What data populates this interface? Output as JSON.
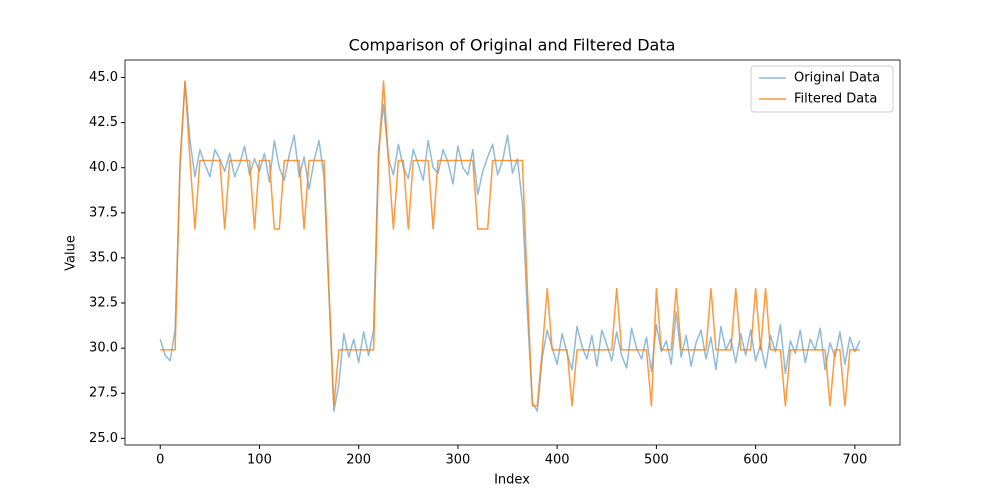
{
  "chart_data": {
    "type": "line",
    "title": "Comparison of Original and Filtered Data",
    "xlabel": "Index",
    "ylabel": "Value",
    "x": [
      0,
      5,
      10,
      15,
      20,
      25,
      30,
      35,
      40,
      45,
      50,
      55,
      60,
      65,
      70,
      75,
      80,
      85,
      90,
      95,
      100,
      105,
      110,
      115,
      120,
      125,
      130,
      135,
      140,
      145,
      150,
      155,
      160,
      165,
      170,
      175,
      180,
      185,
      190,
      195,
      200,
      205,
      210,
      215,
      220,
      225,
      230,
      235,
      240,
      245,
      250,
      255,
      260,
      265,
      270,
      275,
      280,
      285,
      290,
      295,
      300,
      305,
      310,
      315,
      320,
      325,
      330,
      335,
      340,
      345,
      350,
      355,
      360,
      365,
      370,
      375,
      380,
      385,
      390,
      395,
      400,
      405,
      410,
      415,
      420,
      425,
      430,
      435,
      440,
      445,
      450,
      455,
      460,
      465,
      470,
      475,
      480,
      485,
      490,
      495,
      500,
      505,
      510,
      515,
      520,
      525,
      530,
      535,
      540,
      545,
      550,
      555,
      560,
      565,
      570,
      575,
      580,
      585,
      590,
      595,
      600,
      605,
      610,
      615,
      620,
      625,
      630,
      635,
      640,
      645,
      650,
      655,
      660,
      665,
      670,
      675,
      680,
      685,
      690,
      695,
      700,
      705
    ],
    "series": [
      {
        "name": "Original Data",
        "color": "#1f77b4",
        "alpha": 0.5,
        "values": [
          30.5,
          29.6,
          29.3,
          31,
          40,
          44.8,
          41.5,
          39.5,
          41,
          40.2,
          39.5,
          41,
          40.5,
          39.8,
          40.8,
          39.5,
          40.2,
          41.2,
          39.6,
          40.5,
          39.8,
          40.8,
          39.2,
          41.5,
          40,
          39.3,
          40.7,
          41.8,
          39.5,
          40.6,
          38.8,
          40.4,
          41.5,
          39.5,
          33,
          26.5,
          28,
          30.8,
          29.5,
          30.5,
          29.2,
          30.9,
          29.6,
          31,
          41,
          43.5,
          40.5,
          39.6,
          41.3,
          40,
          39.4,
          41,
          40.2,
          39.3,
          41.5,
          40,
          39.7,
          41,
          40.3,
          39.1,
          41.2,
          40,
          39.6,
          41,
          38.5,
          39.8,
          40.6,
          41.3,
          39.6,
          40.4,
          41.8,
          39.7,
          40.5,
          38,
          32,
          27,
          26.5,
          29.5,
          31,
          30,
          29.1,
          30.8,
          29.7,
          28.8,
          31.2,
          30.1,
          29.4,
          30.7,
          29,
          31,
          30.2,
          29.3,
          30.9,
          29.6,
          28.9,
          31.1,
          30,
          29.4,
          30.6,
          28.7,
          31.3,
          29.8,
          30.4,
          29.1,
          32,
          29.5,
          30.7,
          29,
          30.3,
          31,
          29.4,
          30.6,
          28.8,
          31.2,
          29.9,
          30.5,
          29.2,
          30.8,
          29.6,
          31,
          29.3,
          30.2,
          28.9,
          30.7,
          29.8,
          31.3,
          28.6,
          30.4,
          29.7,
          31,
          29.2,
          30.5,
          29.9,
          31.1,
          28.8,
          30.3,
          29.5,
          30.9,
          29.1,
          30.6,
          29.8,
          30.4
        ]
      },
      {
        "name": "Filtered Data",
        "color": "#ff7f0e",
        "alpha": 0.8,
        "values": [
          29.9,
          29.9,
          29.9,
          29.9,
          40.4,
          44.8,
          40.4,
          36.6,
          40.4,
          40.4,
          40.4,
          40.4,
          40.4,
          36.6,
          40.4,
          40.4,
          40.4,
          40.4,
          40.4,
          36.6,
          40.4,
          40.4,
          40.4,
          36.6,
          36.6,
          40.4,
          40.4,
          40.4,
          40.4,
          36.6,
          40.4,
          40.4,
          40.4,
          40.4,
          33.3,
          26.8,
          29.9,
          29.9,
          29.9,
          29.9,
          29.9,
          29.9,
          29.9,
          29.9,
          40.4,
          44.8,
          40.4,
          36.6,
          40.4,
          40.4,
          36.6,
          40.4,
          40.4,
          40.4,
          40.4,
          36.6,
          40.4,
          40.4,
          40.4,
          40.4,
          40.4,
          40.4,
          40.4,
          40.4,
          36.6,
          36.6,
          36.6,
          40.4,
          40.4,
          40.4,
          40.4,
          40.4,
          40.4,
          40.4,
          33.3,
          26.8,
          26.8,
          29.9,
          33.3,
          29.9,
          29.9,
          29.9,
          29.9,
          26.8,
          29.9,
          29.9,
          29.9,
          29.9,
          29.9,
          29.9,
          29.9,
          29.9,
          33.3,
          29.9,
          29.9,
          29.9,
          29.9,
          29.9,
          29.9,
          26.8,
          33.3,
          29.9,
          29.9,
          29.9,
          33.3,
          29.9,
          29.9,
          29.9,
          29.9,
          29.9,
          29.9,
          33.3,
          29.9,
          29.9,
          29.9,
          29.9,
          33.3,
          29.9,
          29.9,
          29.9,
          33.3,
          29.9,
          33.3,
          29.9,
          29.9,
          29.9,
          26.8,
          29.9,
          29.9,
          29.9,
          29.9,
          29.9,
          29.9,
          29.9,
          29.9,
          26.8,
          29.9,
          29.9,
          26.8,
          29.9,
          29.9,
          29.9
        ]
      }
    ],
    "xlim": [
      -35.5,
      745.5
    ],
    "xticks": [
      0,
      100,
      200,
      300,
      400,
      500,
      600,
      700
    ],
    "ylim": [
      24.63,
      45.97
    ],
    "yticks": [
      {
        "value": 25,
        "label": "25.0"
      },
      27.5,
      {
        "value": 30,
        "label": "30.0"
      },
      32.5,
      {
        "value": 35,
        "label": "35.0"
      },
      37.5,
      {
        "value": 40,
        "label": "40.0"
      },
      42.5,
      {
        "value": 45,
        "label": "45.0"
      }
    ],
    "legend": "upper right"
  }
}
